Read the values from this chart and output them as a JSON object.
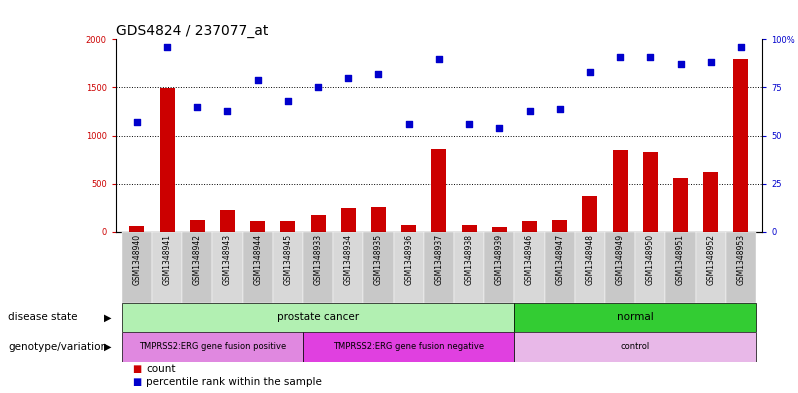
{
  "title": "GDS4824 / 237077_at",
  "samples": [
    "GSM1348940",
    "GSM1348941",
    "GSM1348942",
    "GSM1348943",
    "GSM1348944",
    "GSM1348945",
    "GSM1348933",
    "GSM1348934",
    "GSM1348935",
    "GSM1348936",
    "GSM1348937",
    "GSM1348938",
    "GSM1348939",
    "GSM1348946",
    "GSM1348947",
    "GSM1348948",
    "GSM1348949",
    "GSM1348950",
    "GSM1348951",
    "GSM1348952",
    "GSM1348953"
  ],
  "counts": [
    60,
    1490,
    120,
    230,
    110,
    110,
    175,
    250,
    260,
    70,
    860,
    70,
    50,
    110,
    120,
    370,
    850,
    830,
    560,
    620,
    1800
  ],
  "percentiles": [
    57,
    96,
    65,
    63,
    79,
    68,
    75,
    80,
    82,
    56,
    90,
    56,
    54,
    63,
    64,
    83,
    91,
    91,
    87,
    88,
    96
  ],
  "bar_color": "#cc0000",
  "dot_color": "#0000cc",
  "ylim_left": [
    0,
    2000
  ],
  "ylim_right": [
    0,
    100
  ],
  "yticks_left": [
    0,
    500,
    1000,
    1500,
    2000
  ],
  "ytick_labels_left": [
    "0",
    "500",
    "1000",
    "1500",
    "2000"
  ],
  "yticks_right": [
    0,
    25,
    50,
    75,
    100
  ],
  "ytick_labels_right": [
    "0",
    "25",
    "50",
    "75",
    "100%"
  ],
  "grid_lines": [
    500,
    1000,
    1500
  ],
  "disease_state_groups": [
    {
      "label": "prostate cancer",
      "start": 0,
      "end": 12,
      "color": "#b2f0b2"
    },
    {
      "label": "normal",
      "start": 13,
      "end": 20,
      "color": "#33cc33"
    }
  ],
  "genotype_groups": [
    {
      "label": "TMPRSS2:ERG gene fusion positive",
      "start": 0,
      "end": 5,
      "color": "#e088e0"
    },
    {
      "label": "TMPRSS2:ERG gene fusion negative",
      "start": 6,
      "end": 12,
      "color": "#e040e0"
    },
    {
      "label": "control",
      "start": 13,
      "end": 20,
      "color": "#e8b8e8"
    }
  ],
  "disease_state_label": "disease state",
  "genotype_label": "genotype/variation",
  "legend_count_label": "count",
  "legend_percentile_label": "percentile rank within the sample",
  "background_color": "#ffffff",
  "plot_bg_color": "#ffffff",
  "tick_label_color_left": "#cc0000",
  "tick_label_color_right": "#0000cc",
  "bar_width": 0.5,
  "dot_size": 25,
  "title_fontsize": 10,
  "tick_fontsize": 6,
  "label_fontsize": 7.5,
  "annotation_fontsize": 7.5,
  "sample_fontsize": 5.5
}
